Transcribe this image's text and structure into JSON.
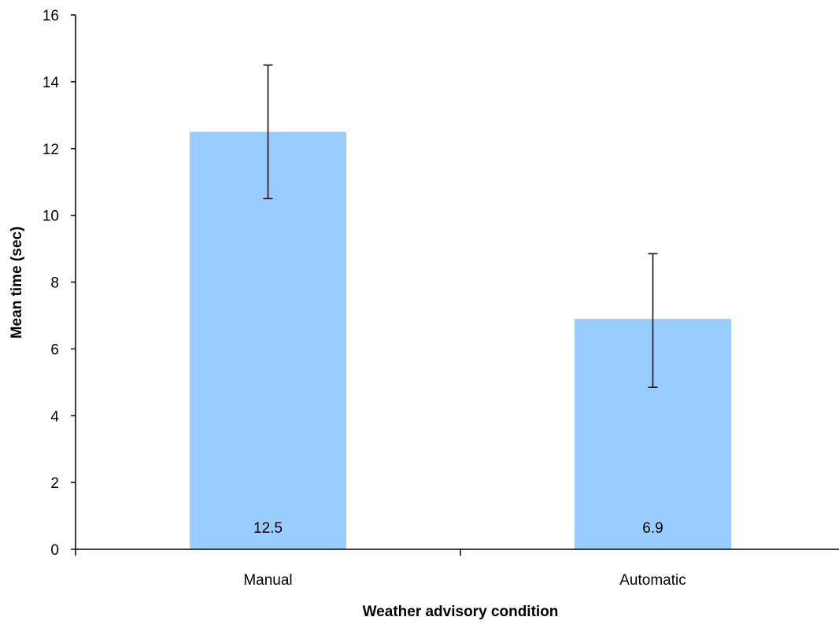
{
  "chart_data": {
    "type": "bar",
    "title": "",
    "xlabel": "Weather advisory condition",
    "ylabel": "Mean time (sec)",
    "categories": [
      "Manual",
      "Automatic"
    ],
    "values": [
      12.5,
      6.9
    ],
    "data_labels": [
      "12.5",
      "6.9"
    ],
    "error_bars": [
      {
        "low": 10.5,
        "high": 14.5
      },
      {
        "low": 4.85,
        "high": 8.85
      }
    ],
    "ylim": [
      0,
      16
    ],
    "yticks": [
      0,
      2,
      4,
      6,
      8,
      10,
      12,
      14,
      16
    ],
    "ytick_labels": [
      "0",
      "2",
      "4",
      "6",
      "8",
      "10",
      "12",
      "14",
      "16"
    ],
    "grid": false,
    "legend": "none",
    "bar_color": "#99ccff",
    "axis_color": "#000000"
  }
}
